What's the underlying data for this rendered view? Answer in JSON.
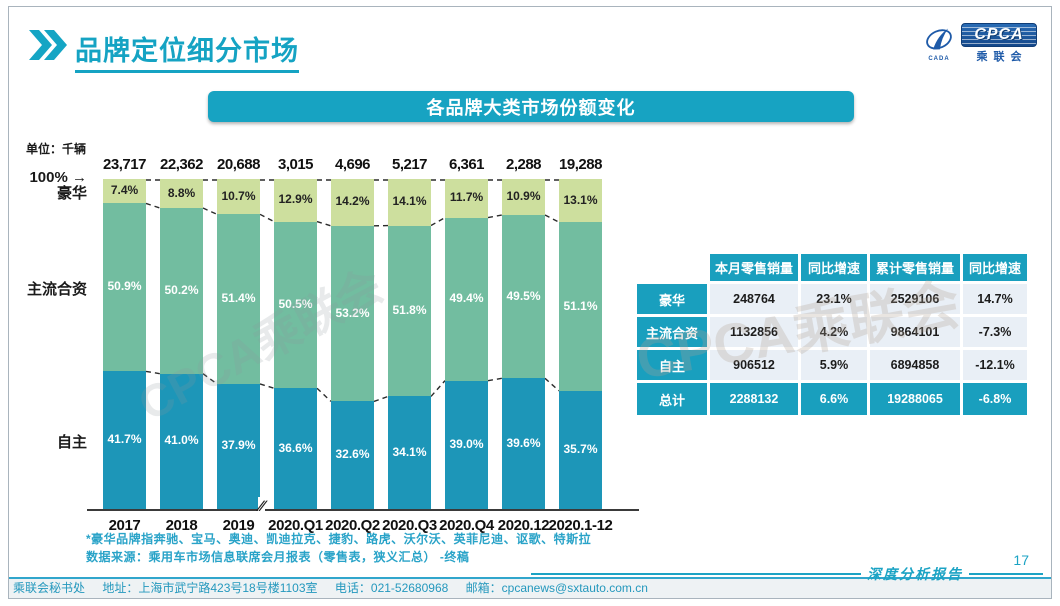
{
  "header": {
    "title": "品牌定位细分市场",
    "logo": {
      "acronym": "CPCA",
      "cn_name": "乘联会",
      "sub_mark": "CADA"
    }
  },
  "chart_title": "各品牌大类市场份额变化",
  "unit_label": "单位：千辆",
  "watermark": "CPCA乘联会",
  "chart_meta": {
    "hundred_label": "100%",
    "arrow": "→",
    "break_mark": "∕∕"
  },
  "chart_data": {
    "type": "bar",
    "stacked": true,
    "title": "各品牌大类市场份额变化",
    "unit": "千辆",
    "ylim": [
      0,
      100
    ],
    "grid": false,
    "legend_position": "left-labels",
    "categories": [
      "2017",
      "2018",
      "2019",
      "2020.Q1",
      "2020.Q2",
      "2020.Q3",
      "2020.Q4",
      "2020.12",
      "2020.1-12"
    ],
    "totals": [
      "23,717",
      "22,362",
      "20,688",
      "3,015",
      "4,696",
      "5,217",
      "6,361",
      "2,288",
      "19,288"
    ],
    "axis_break_after": "2019",
    "series": [
      {
        "name": "豪华",
        "color": "#cddf9e",
        "label_color": "#222222",
        "values": [
          7.4,
          8.8,
          10.7,
          12.9,
          14.2,
          14.1,
          11.7,
          10.9,
          13.1
        ]
      },
      {
        "name": "主流合资",
        "color": "#72bda0",
        "label_color": "#ffffff",
        "values": [
          50.9,
          50.2,
          51.4,
          50.5,
          53.2,
          51.8,
          49.4,
          49.5,
          51.1
        ]
      },
      {
        "name": "自主",
        "color": "#1d96b8",
        "label_color": "#ffffff",
        "values": [
          41.7,
          41.0,
          37.9,
          36.6,
          32.6,
          34.1,
          39.0,
          39.6,
          35.7
        ]
      }
    ]
  },
  "table": {
    "headers": [
      "",
      "本月零售销量",
      "同比增速",
      "累计零售销量",
      "同比增速"
    ],
    "rows": [
      {
        "label": "豪华",
        "cells": [
          "248764",
          "23.1%",
          "2529106",
          "14.7%"
        ],
        "is_total": false
      },
      {
        "label": "主流合资",
        "cells": [
          "1132856",
          "4.2%",
          "9864101",
          "-7.3%"
        ],
        "is_total": false
      },
      {
        "label": "自主",
        "cells": [
          "906512",
          "5.9%",
          "6894858",
          "-12.1%"
        ],
        "is_total": false
      },
      {
        "label": "总计",
        "cells": [
          "2288132",
          "6.6%",
          "19288065",
          "-6.8%"
        ],
        "is_total": true
      }
    ]
  },
  "footnotes": [
    "*豪华品牌指奔驰、宝马、奥迪、凯迪拉克、捷豹、路虎、沃尔沃、英菲尼迪、讴歌、特斯拉",
    "数据来源：乘用车市场信息联席会月报表（零售表，狭义汇总） -终稿"
  ],
  "footer": {
    "contact": [
      "乘联会秘书处",
      "地址：上海市武宁路423号18号楼1103室",
      "电话：021-52680968",
      "邮箱：cpcanews@sxtauto.com.cn"
    ],
    "report_label": "深度分析报告",
    "page_number": "17"
  }
}
